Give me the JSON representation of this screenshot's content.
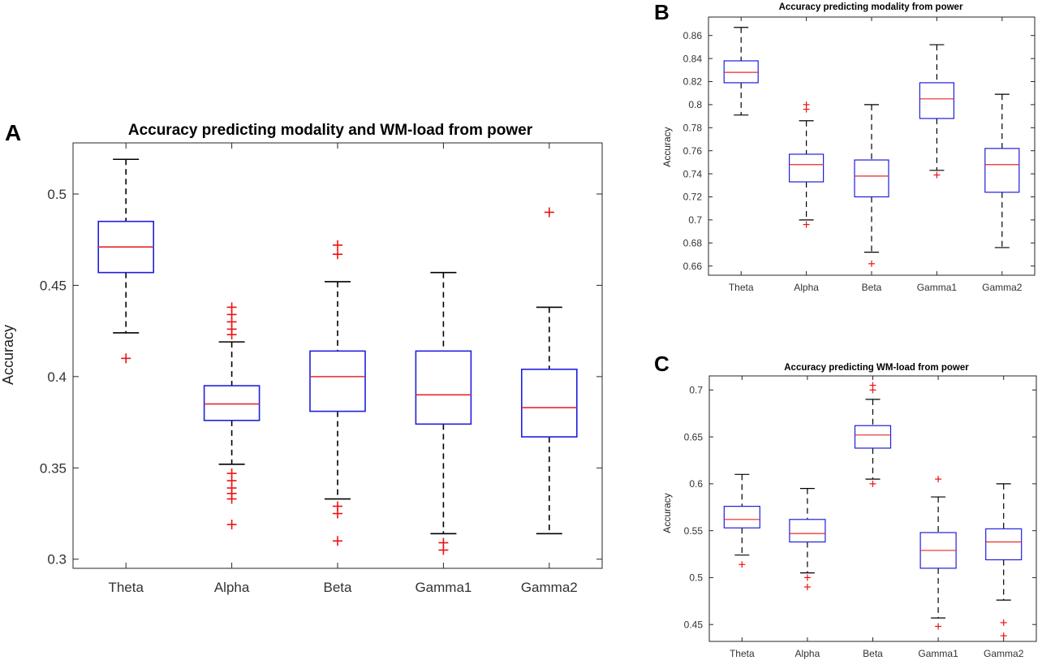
{
  "chart_data": [
    {
      "panel": "A",
      "type": "box",
      "title": "Accuracy predicting modality and WM-load from power",
      "xlabel": "",
      "ylabel": "Accuracy",
      "ylim": [
        0.295,
        0.528
      ],
      "yticks": [
        0.3,
        0.35,
        0.4,
        0.45,
        0.5
      ],
      "ytick_labels": [
        "0.3",
        "0.35",
        "0.4",
        "0.45",
        "0.5"
      ],
      "categories": [
        "Theta",
        "Alpha",
        "Beta",
        "Gamma1",
        "Gamma2"
      ],
      "boxes": [
        {
          "name": "Theta",
          "whislo": 0.424,
          "q1": 0.457,
          "med": 0.471,
          "q3": 0.485,
          "whishi": 0.519,
          "fliers": [
            0.41
          ]
        },
        {
          "name": "Alpha",
          "whislo": 0.352,
          "q1": 0.376,
          "med": 0.385,
          "q3": 0.395,
          "whishi": 0.419,
          "fliers": [
            0.438,
            0.434,
            0.43,
            0.426,
            0.423,
            0.347,
            0.343,
            0.339,
            0.336,
            0.333,
            0.319
          ]
        },
        {
          "name": "Beta",
          "whislo": 0.333,
          "q1": 0.381,
          "med": 0.4,
          "q3": 0.414,
          "whishi": 0.452,
          "fliers": [
            0.472,
            0.467,
            0.329,
            0.325,
            0.31
          ]
        },
        {
          "name": "Gamma1",
          "whislo": 0.314,
          "q1": 0.374,
          "med": 0.39,
          "q3": 0.414,
          "whishi": 0.457,
          "fliers": [
            0.309,
            0.305
          ]
        },
        {
          "name": "Gamma2",
          "whislo": 0.314,
          "q1": 0.367,
          "med": 0.383,
          "q3": 0.404,
          "whishi": 0.438,
          "fliers": [
            0.49
          ]
        }
      ]
    },
    {
      "panel": "B",
      "type": "box",
      "title": "Accuracy predicting modality from power",
      "xlabel": "",
      "ylabel": "Accuracy",
      "ylim": [
        0.652,
        0.876
      ],
      "yticks": [
        0.66,
        0.68,
        0.7,
        0.72,
        0.74,
        0.76,
        0.78,
        0.8,
        0.82,
        0.84,
        0.86
      ],
      "ytick_labels": [
        "0.66",
        "0.68",
        "0.7",
        "0.72",
        "0.74",
        "0.76",
        "0.78",
        "0.8",
        "0.82",
        "0.84",
        "0.86"
      ],
      "categories": [
        "Theta",
        "Alpha",
        "Beta",
        "Gamma1",
        "Gamma2"
      ],
      "boxes": [
        {
          "name": "Theta",
          "whislo": 0.791,
          "q1": 0.819,
          "med": 0.828,
          "q3": 0.838,
          "whishi": 0.867,
          "fliers": []
        },
        {
          "name": "Alpha",
          "whislo": 0.7,
          "q1": 0.733,
          "med": 0.748,
          "q3": 0.757,
          "whishi": 0.786,
          "fliers": [
            0.8,
            0.796,
            0.696
          ]
        },
        {
          "name": "Beta",
          "whislo": 0.672,
          "q1": 0.72,
          "med": 0.738,
          "q3": 0.752,
          "whishi": 0.8,
          "fliers": [
            0.662
          ]
        },
        {
          "name": "Gamma1",
          "whislo": 0.743,
          "q1": 0.788,
          "med": 0.805,
          "q3": 0.819,
          "whishi": 0.852,
          "fliers": [
            0.739
          ]
        },
        {
          "name": "Gamma2",
          "whislo": 0.676,
          "q1": 0.724,
          "med": 0.748,
          "q3": 0.762,
          "whishi": 0.809,
          "fliers": []
        }
      ]
    },
    {
      "panel": "C",
      "type": "box",
      "title": "Accuracy predicting WM-load from power",
      "xlabel": "",
      "ylabel": "Accuracy",
      "ylim": [
        0.432,
        0.715
      ],
      "yticks": [
        0.45,
        0.5,
        0.55,
        0.6,
        0.65,
        0.7
      ],
      "ytick_labels": [
        "0.45",
        "0.5",
        "0.55",
        "0.6",
        "0.65",
        "0.7"
      ],
      "categories": [
        "Theta",
        "Alpha",
        "Beta",
        "Gamma1",
        "Gamma2"
      ],
      "boxes": [
        {
          "name": "Theta",
          "whislo": 0.524,
          "q1": 0.553,
          "med": 0.562,
          "q3": 0.576,
          "whishi": 0.61,
          "fliers": [
            0.514
          ]
        },
        {
          "name": "Alpha",
          "whislo": 0.505,
          "q1": 0.538,
          "med": 0.547,
          "q3": 0.562,
          "whishi": 0.595,
          "fliers": [
            0.5,
            0.49
          ]
        },
        {
          "name": "Beta",
          "whislo": 0.605,
          "q1": 0.638,
          "med": 0.652,
          "q3": 0.662,
          "whishi": 0.69,
          "fliers": [
            0.705,
            0.7,
            0.6
          ]
        },
        {
          "name": "Gamma1",
          "whislo": 0.457,
          "q1": 0.51,
          "med": 0.529,
          "q3": 0.548,
          "whishi": 0.586,
          "fliers": [
            0.605,
            0.448
          ]
        },
        {
          "name": "Gamma2",
          "whislo": 0.476,
          "q1": 0.519,
          "med": 0.538,
          "q3": 0.552,
          "whishi": 0.6,
          "fliers": [
            0.452,
            0.438
          ]
        }
      ]
    }
  ],
  "colors": {
    "box": "#1f1fdd",
    "median": "#e8282a",
    "whisker": "#000000",
    "flier": "#ee1111",
    "axes": "#262626",
    "background": "#ffffff"
  }
}
